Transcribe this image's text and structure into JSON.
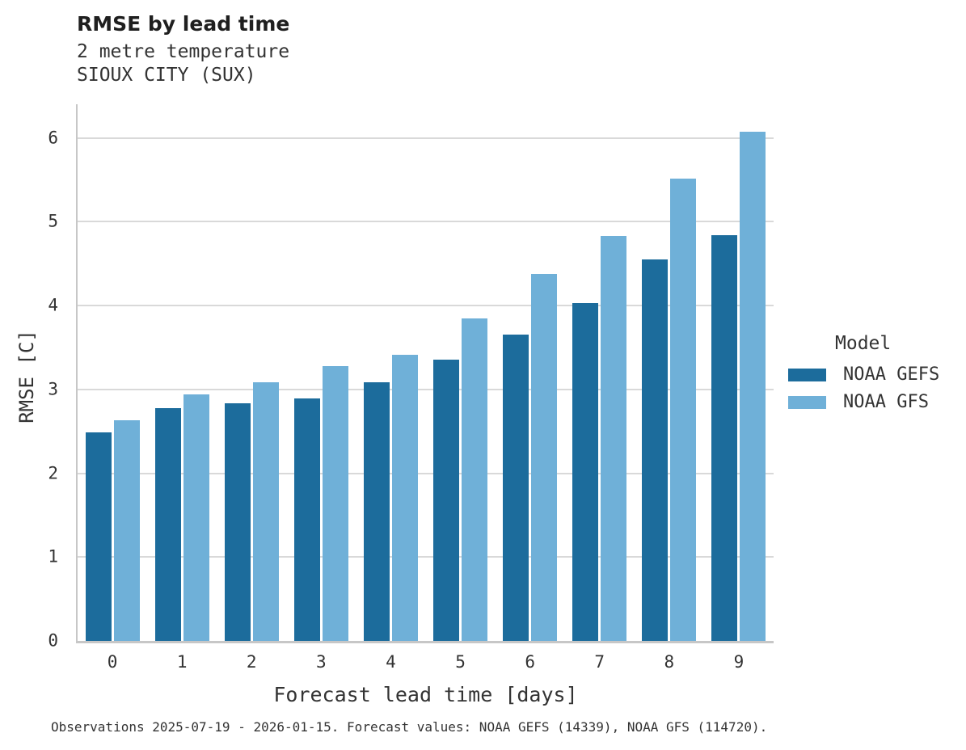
{
  "header": {
    "title": "RMSE by lead time",
    "subtitle_line1": "2 metre temperature",
    "subtitle_line2": "SIOUX CITY (SUX)"
  },
  "colors": {
    "noaa_gefs": "#1c6c9c",
    "noaa_gfs": "#6fb0d8",
    "gridline": "#d9d9d9",
    "spine": "#c7c7c7",
    "text": "#333333",
    "title_text": "#1f1f1f"
  },
  "chart_data": {
    "type": "bar",
    "title": "RMSE by lead time",
    "subtitle": [
      "2 metre temperature",
      "SIOUX CITY (SUX)"
    ],
    "categories": [
      "0",
      "1",
      "2",
      "3",
      "4",
      "5",
      "6",
      "7",
      "8",
      "9"
    ],
    "series": [
      {
        "name": "NOAA GEFS",
        "color": "#1c6c9c",
        "values": [
          2.49,
          2.78,
          2.83,
          2.89,
          3.08,
          3.35,
          3.65,
          4.03,
          4.55,
          4.84
        ]
      },
      {
        "name": "NOAA GFS",
        "color": "#6fb0d8",
        "values": [
          2.63,
          2.94,
          3.08,
          3.28,
          3.41,
          3.85,
          4.38,
          4.83,
          5.51,
          6.07
        ]
      }
    ],
    "xlabel": "Forecast lead time [days]",
    "ylabel": "RMSE [C]",
    "ylim": [
      0,
      6.4
    ],
    "yticks": [
      0,
      1,
      2,
      3,
      4,
      5,
      6
    ],
    "grid": "horizontal",
    "legend_title": "Model",
    "legend_position": "right",
    "caption": "Observations 2025-07-19 - 2026-01-15. Forecast values: NOAA GEFS (14339), NOAA GFS (114720)."
  }
}
